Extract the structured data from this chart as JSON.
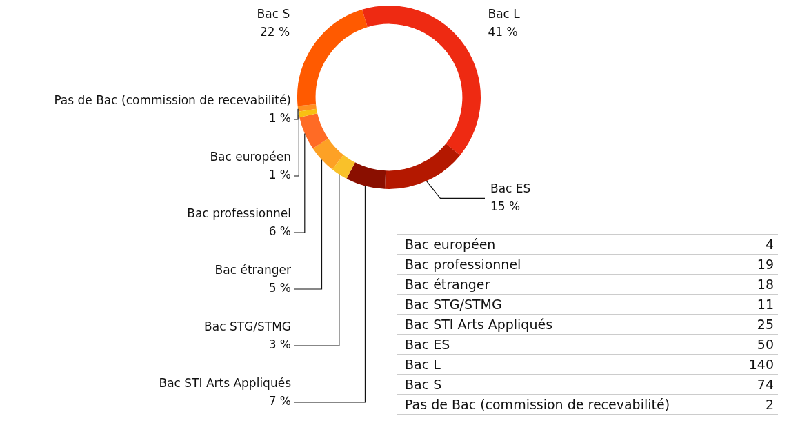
{
  "chart_data": [
    {
      "type": "donut",
      "categories": [
        "Bac européen",
        "Bac professionnel",
        "Bac étranger",
        "Bac STG/STMG",
        "Bac STI Arts Appliqués",
        "Bac ES",
        "Bac L",
        "Bac S",
        "Pas de Bac (commission de recevabilité)"
      ],
      "values": [
        1,
        6,
        5,
        3,
        7,
        15,
        41,
        22,
        1
      ],
      "colors": [
        "#f8c012",
        "#ff6b25",
        "#fda125",
        "#f9c12a",
        "#8a0f00",
        "#b41800",
        "#ee2a12",
        "#ff5a00",
        "#ff9020"
      ],
      "value_labels": [
        "1 %",
        "6 %",
        "5 %",
        "3 %",
        "7 %",
        "15 %",
        "41 %",
        "22 %",
        "1 %"
      ]
    },
    {
      "type": "other",
      "categories": [
        "Bac européen",
        "Bac professionnel",
        "Bac étranger",
        "Bac STG/STMG",
        "Bac STI Arts Appliqués",
        "Bac ES",
        "Bac L",
        "Bac S",
        "Pas de Bac (commission de recevabilité)"
      ],
      "values": [
        4,
        19,
        18,
        11,
        25,
        50,
        140,
        74,
        2
      ],
      "data_labels": true
    }
  ]
}
